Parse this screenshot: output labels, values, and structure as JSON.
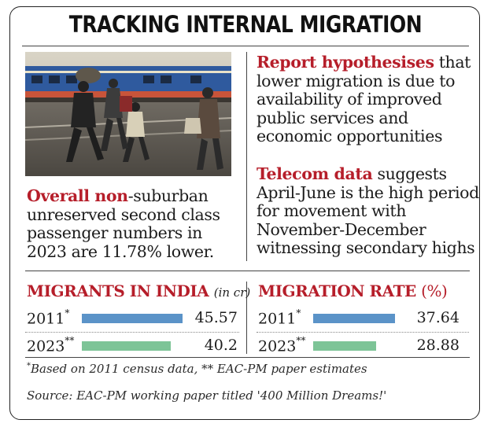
{
  "title": "TRACKING INTERNAL MIGRATION",
  "left_text": {
    "lead": "Overall non",
    "body": "-suburban unreserved second class passenger numbers in 2023 are 11.78% lower."
  },
  "right_texts": [
    {
      "lead": "Report hypothesises",
      "body": " that lower migration is due to availability of improved public services and economic opportunities"
    },
    {
      "lead": "Telecom data",
      "body": " suggests April-June is the high period for movement with November-December witnessing secondary highs"
    }
  ],
  "colors": {
    "accent": "#b61e2a",
    "bar_2011": "#5b93c8",
    "bar_2023": "#7dc497"
  },
  "chart_data": [
    {
      "type": "bar",
      "title": "MIGRANTS IN INDIA",
      "unit": "(in cr)",
      "categories": [
        "2011",
        "2023"
      ],
      "category_marks": [
        "*",
        "**"
      ],
      "values": [
        45.57,
        40.2
      ],
      "value_labels": [
        "45.57",
        "40.2"
      ],
      "orientation": "horizontal"
    },
    {
      "type": "bar",
      "title": "MIGRATION RATE",
      "unit": "(%)",
      "categories": [
        "2011",
        "2023"
      ],
      "category_marks": [
        "*",
        "**"
      ],
      "values": [
        37.64,
        28.88
      ],
      "value_labels": [
        "37.64",
        "28.88"
      ],
      "orientation": "horizontal"
    }
  ],
  "footnote": {
    "mark1": "*",
    "text1": "Based on 2011 census data, ",
    "mark2": "**",
    "text2": " EAC-PM paper estimates"
  },
  "source": "Source: EAC-PM working paper titled '400 Million Dreams!'"
}
